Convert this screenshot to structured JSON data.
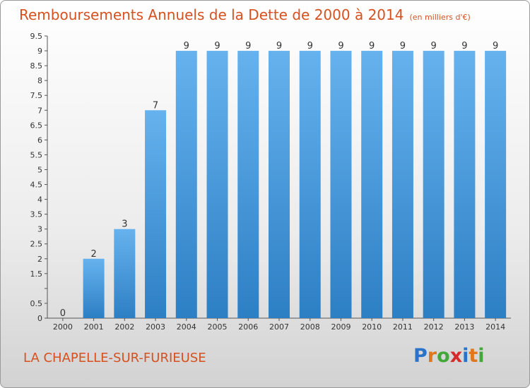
{
  "header": {
    "title": "Remboursements Annuels de la Dette de 2000 à 2014",
    "unit": "(en milliers d'€)"
  },
  "footer": {
    "commune": "LA CHAPELLE-SUR-FURIEUSE",
    "logo": {
      "letters": [
        "P",
        "r",
        "o",
        "x",
        "i",
        "t",
        "i"
      ],
      "colors": [
        "#2a73c8",
        "#e0771b",
        "#43a83a",
        "#d62b2b",
        "#2a73c8",
        "#e0771b",
        "#43a83a"
      ]
    }
  },
  "colors": {
    "bar_light": "#66b2ee",
    "bar_dark": "#2d7fc4",
    "text": "#333333",
    "accent": "#d6511f"
  },
  "chart_data": {
    "type": "bar",
    "categories": [
      "2000",
      "2001",
      "2002",
      "2003",
      "2004",
      "2005",
      "2006",
      "2007",
      "2008",
      "2009",
      "2010",
      "2011",
      "2012",
      "2013",
      "2014"
    ],
    "values": [
      0,
      2,
      3,
      7,
      9,
      9,
      9,
      9,
      9,
      9,
      9,
      9,
      9,
      9,
      9
    ],
    "data_labels": [
      "0",
      "2",
      "3",
      "7",
      "9",
      "9",
      "9",
      "9",
      "9",
      "9",
      "9",
      "9",
      "9",
      "9",
      "9"
    ],
    "y_ticks": [
      0,
      0.5,
      1,
      1.5,
      2,
      2.5,
      3,
      3.5,
      4,
      4.5,
      5,
      5.5,
      6,
      6.5,
      7,
      7.5,
      8,
      8.5,
      9,
      9.5
    ],
    "y_tick_labels": [
      "0",
      "0.5",
      "",
      "1.5",
      "2",
      "2.5",
      "3",
      "3.5",
      "4",
      "4.5",
      "5",
      "5.5",
      "6",
      "6.5",
      "7",
      "7.5",
      "8",
      "8.5",
      "9",
      "9.5"
    ],
    "ylim": [
      0,
      9.5
    ],
    "grid": false,
    "title": "Remboursements Annuels de la Dette de 2000 à 2014"
  }
}
